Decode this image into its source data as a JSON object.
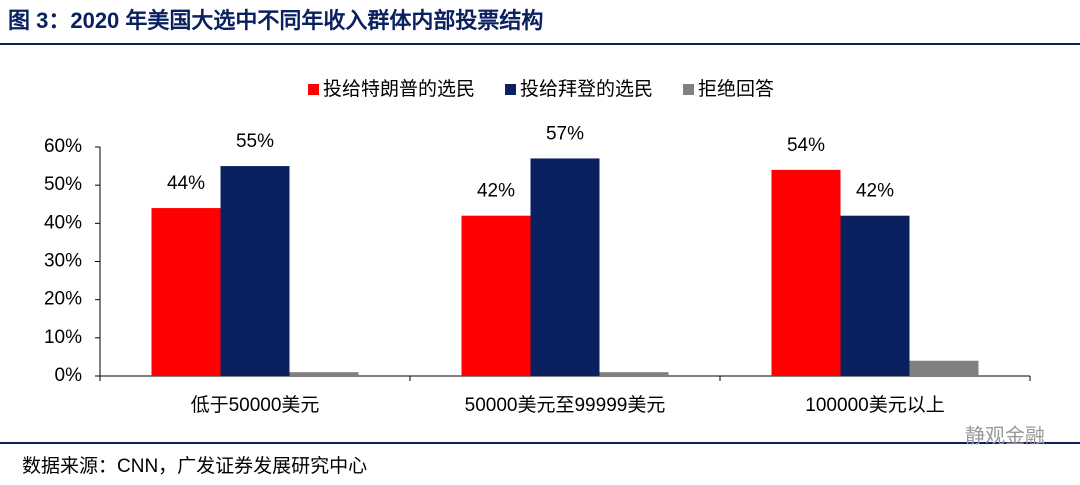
{
  "title": "图 3：2020 年美国大选中不同年收入群体内部投票结构",
  "chart_data": {
    "type": "bar",
    "categories": [
      "低于50000美元",
      "50000美元至99999美元",
      "100000美元以上"
    ],
    "series": [
      {
        "name": "投给特朗普的选民",
        "color": "#ff0000",
        "values": [
          44,
          42,
          54
        ],
        "value_labels": [
          "44%",
          "42%",
          "54%"
        ]
      },
      {
        "name": "投给拜登的选民",
        "color": "#0b2060",
        "values": [
          55,
          57,
          42
        ],
        "value_labels": [
          "55%",
          "57%",
          "42%"
        ]
      },
      {
        "name": "拒绝回答",
        "color": "#808080",
        "values": [
          1,
          1,
          4
        ]
      }
    ],
    "ylim": [
      0,
      60
    ],
    "yticks": [
      {
        "value": 0,
        "label": "0%"
      },
      {
        "value": 10,
        "label": "10%"
      },
      {
        "value": 20,
        "label": "20%"
      },
      {
        "value": 30,
        "label": "30%"
      },
      {
        "value": 40,
        "label": "40%"
      },
      {
        "value": 50,
        "label": "50%"
      },
      {
        "value": 60,
        "label": "60%"
      }
    ],
    "legend": "top"
  },
  "source": "数据来源：CNN，广发证券发展研究中心",
  "watermark": "静观金融"
}
